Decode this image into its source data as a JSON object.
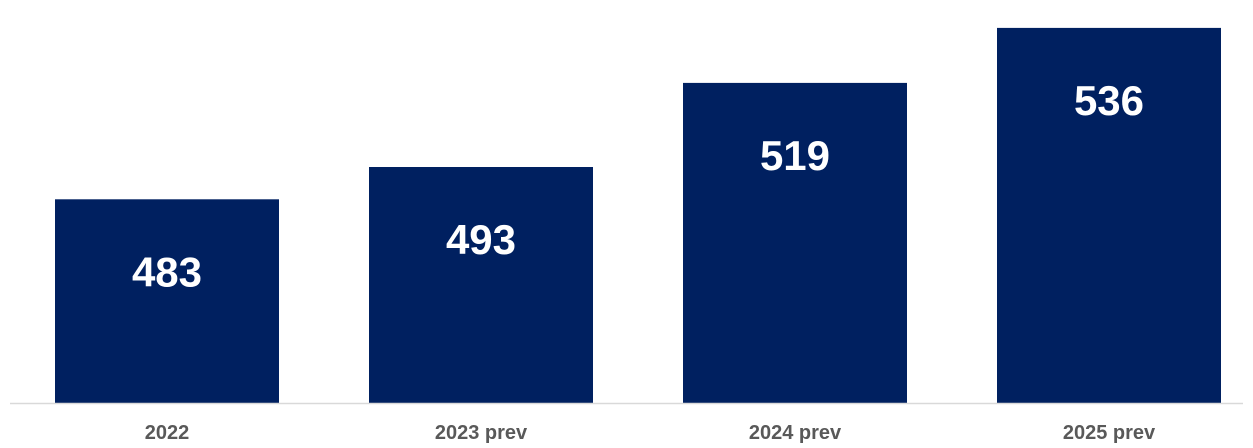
{
  "chart_data": {
    "type": "bar",
    "categories": [
      "2022",
      "2023 prev",
      "2024 prev",
      "2025 prev"
    ],
    "values": [
      483,
      493,
      519,
      536
    ],
    "data_labels": [
      "483",
      "493",
      "519",
      "536"
    ],
    "title": "",
    "xlabel": "",
    "ylabel": "",
    "ylim": [
      420,
      540
    ],
    "grid": false,
    "legend": "none",
    "colors": {
      "bar": "#002060",
      "bar_label": "#ffffff",
      "category_label": "#595959",
      "axis_line": "#d9d9d9"
    }
  }
}
